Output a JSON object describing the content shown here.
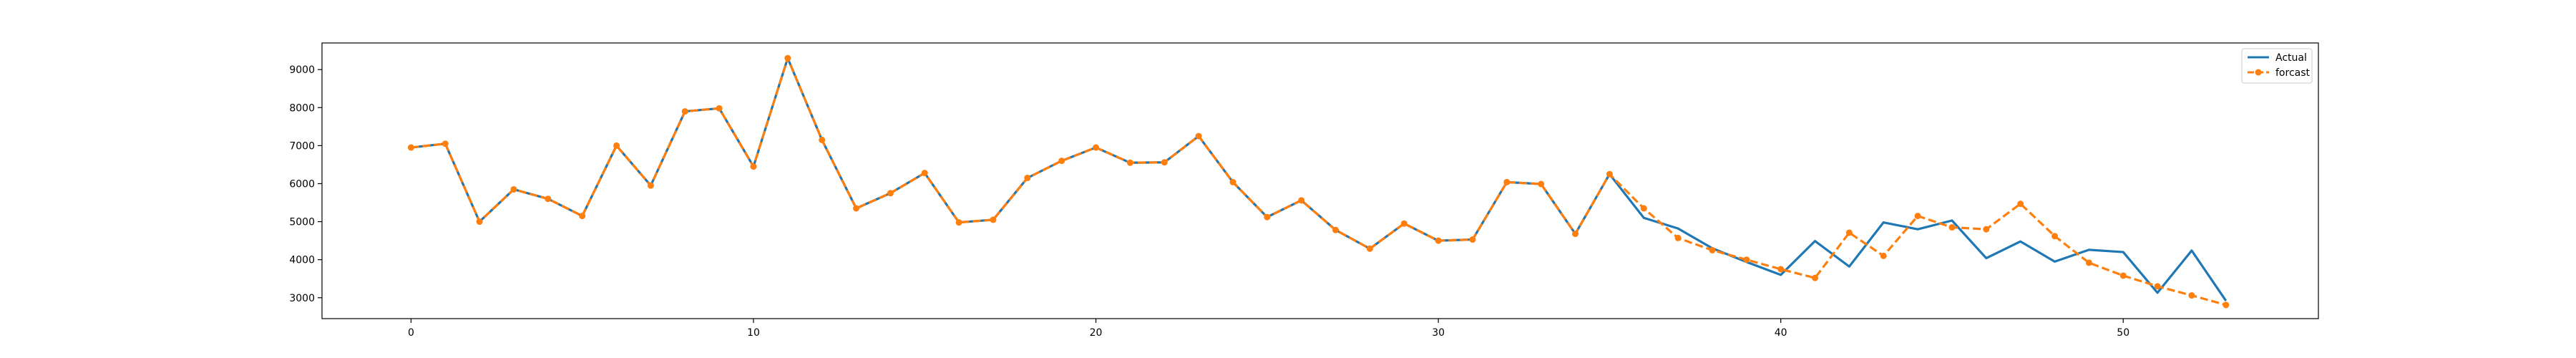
{
  "chart_data": {
    "type": "line",
    "title": "",
    "xlabel": "",
    "ylabel": "",
    "xlim": [
      -2.6,
      55.7
    ],
    "ylim": [
      2450,
      9700
    ],
    "xticks": [
      0,
      10,
      20,
      30,
      40,
      50
    ],
    "yticks": [
      3000,
      4000,
      5000,
      6000,
      7000,
      8000,
      9000
    ],
    "grid": false,
    "legend": "top-right",
    "colors": {
      "actual": "#1f77b4",
      "forecast": "#ff7f0e"
    },
    "series": [
      {
        "name": "Actual",
        "style": "solid",
        "x": [
          0,
          1,
          2,
          3,
          4,
          5,
          6,
          7,
          8,
          9,
          10,
          11,
          12,
          13,
          14,
          15,
          16,
          17,
          18,
          19,
          20,
          21,
          22,
          23,
          24,
          25,
          26,
          27,
          28,
          29,
          30,
          31,
          32,
          33,
          34,
          35,
          36,
          37,
          38,
          39,
          40,
          41,
          42,
          43,
          44,
          45,
          46,
          47,
          48,
          49,
          50,
          51,
          52,
          53
        ],
        "values": [
          6950,
          7050,
          5000,
          5850,
          5600,
          5150,
          7000,
          5950,
          7900,
          7980,
          6450,
          9300,
          7150,
          5350,
          5750,
          6280,
          4980,
          5050,
          6150,
          6600,
          6950,
          6550,
          6560,
          7250,
          6040,
          5120,
          5560,
          4780,
          4290,
          4950,
          4500,
          4530,
          6040,
          5990,
          4680,
          6250,
          5100,
          4820,
          4300,
          3940,
          3600,
          4490,
          3820,
          4980,
          4800,
          5030,
          4040,
          4480,
          3950,
          4260,
          4200,
          3130,
          4240,
          2920
        ]
      },
      {
        "name": "forcast",
        "style": "dashed",
        "marker": "circle",
        "x": [
          0,
          1,
          2,
          3,
          4,
          5,
          6,
          7,
          8,
          9,
          10,
          11,
          12,
          13,
          14,
          15,
          16,
          17,
          18,
          19,
          20,
          21,
          22,
          23,
          24,
          25,
          26,
          27,
          28,
          29,
          30,
          31,
          32,
          33,
          34,
          35,
          36,
          37,
          38,
          39,
          40,
          41,
          42,
          43,
          44,
          45,
          46,
          47,
          48,
          49,
          50,
          51,
          52,
          53
        ],
        "values": [
          6950,
          7050,
          5000,
          5850,
          5600,
          5150,
          7000,
          5950,
          7900,
          7980,
          6450,
          9300,
          7150,
          5350,
          5750,
          6280,
          4980,
          5050,
          6150,
          6600,
          6950,
          6550,
          6560,
          7250,
          6040,
          5120,
          5560,
          4780,
          4290,
          4950,
          4500,
          4530,
          6040,
          5990,
          4680,
          6250,
          5350,
          4570,
          4250,
          4000,
          3750,
          3520,
          4710,
          4100,
          5150,
          4850,
          4800,
          5470,
          4620,
          3920,
          3580,
          3300,
          3060,
          2810
        ]
      }
    ]
  }
}
